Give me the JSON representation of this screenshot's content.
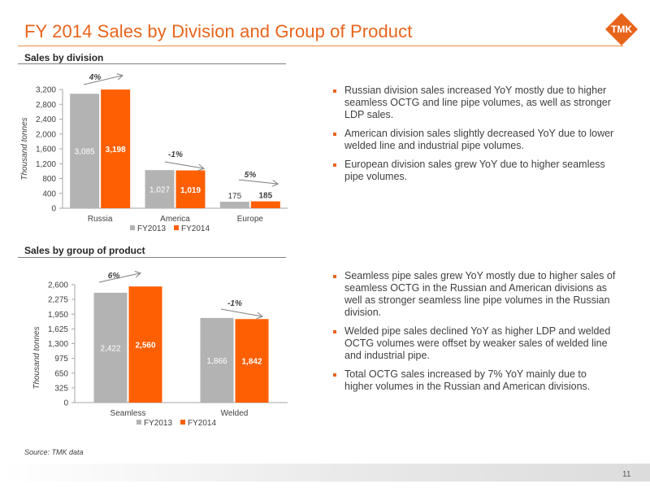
{
  "title": "FY 2014 Sales by Division and Group of Product",
  "logo_text": "TMK",
  "colors": {
    "accent": "#e8641b",
    "fy2013": "#b3b3b3",
    "fy2014": "#fe5f03"
  },
  "division": {
    "heading": "Sales by division",
    "bullets": [
      "Russian division sales increased YoY mostly due to higher seamless OCTG and line pipe volumes, as well as stronger LDP sales.",
      "American division sales slightly decreased YoY due to lower welded line and industrial pipe volumes.",
      "European division sales grew YoY due to higher seamless pipe volumes."
    ]
  },
  "product": {
    "heading": "Sales by group of product",
    "bullets": [
      "Seamless pipe sales grew YoY mostly due to higher sales of seamless OCTG in the Russian and American divisions as well as stronger seamless line pipe volumes in the Russian division.",
      "Welded pipe sales declined YoY as higher LDP and welded OCTG volumes were offset by weaker sales of welded line and industrial pipe.",
      "Total OCTG sales increased by 7% YoY mainly due to higher volumes in the Russian and American divisions."
    ]
  },
  "chart_data": [
    {
      "type": "bar",
      "title": "Sales by division",
      "ylabel": "Thousand tonnes",
      "xlabel": "",
      "categories": [
        "Russia",
        "America",
        "Europe"
      ],
      "series": [
        {
          "name": "FY2013",
          "values": [
            3085,
            1027,
            175
          ],
          "labels": [
            "3,085",
            "1,027",
            "175"
          ]
        },
        {
          "name": "FY2014",
          "values": [
            3198,
            1019,
            185
          ],
          "labels": [
            "3,198",
            "1,019",
            "185"
          ]
        }
      ],
      "changes": [
        "4%",
        "-1%",
        "5%"
      ],
      "ylim": [
        0,
        3200
      ],
      "yticks": [
        0,
        400,
        800,
        1200,
        1600,
        2000,
        2400,
        2800,
        3200
      ],
      "ytick_labels": [
        "0",
        "400",
        "800",
        "1,200",
        "1,600",
        "2,000",
        "2,400",
        "2,800",
        "3,200"
      ],
      "grid": false,
      "legend": "bottom"
    },
    {
      "type": "bar",
      "title": "Sales by group of product",
      "ylabel": "Thousand tonnes",
      "xlabel": "",
      "categories": [
        "Seamless",
        "Welded"
      ],
      "series": [
        {
          "name": "FY2013",
          "values": [
            2422,
            1866
          ],
          "labels": [
            "2,422",
            "1,866"
          ]
        },
        {
          "name": "FY2014",
          "values": [
            2560,
            1842
          ],
          "labels": [
            "2,560",
            "1,842"
          ]
        }
      ],
      "changes": [
        "6%",
        "-1%"
      ],
      "ylim": [
        0,
        2600
      ],
      "yticks": [
        0,
        325,
        650,
        975,
        1300,
        1625,
        1950,
        2275,
        2600
      ],
      "ytick_labels": [
        "0",
        "325",
        "650",
        "975",
        "1,300",
        "1,625",
        "1,950",
        "2,275",
        "2,600"
      ],
      "grid": false,
      "legend": "bottom"
    }
  ],
  "source": "Source: TMK data",
  "page_number": "11"
}
